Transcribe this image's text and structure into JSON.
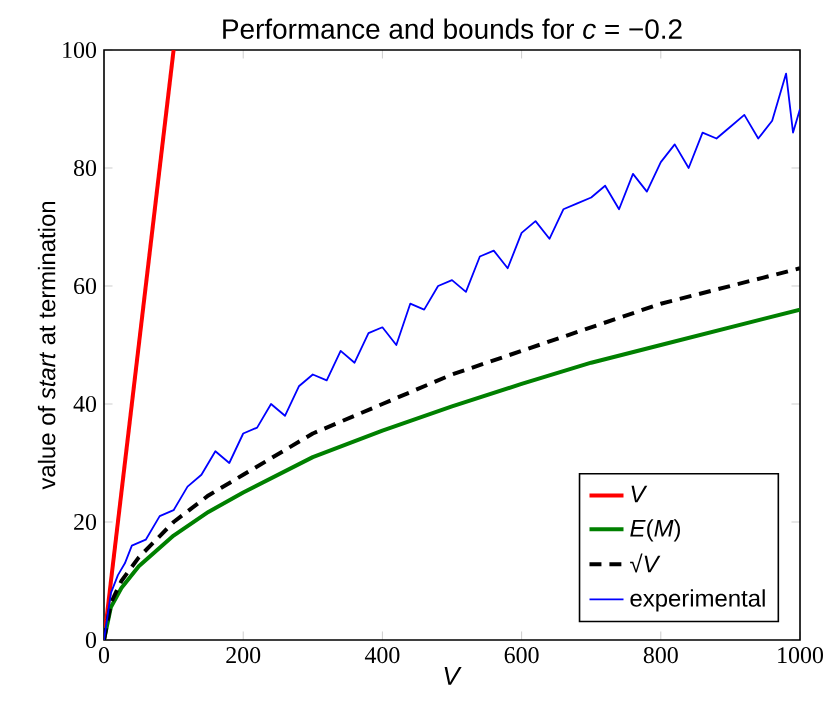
{
  "chart_data": {
    "type": "line",
    "title": "Performance and bounds for *c* = −0.2",
    "xlabel": "*V*",
    "ylabel": "value of *start* at termination",
    "xlim": [
      0,
      1000
    ],
    "ylim": [
      0,
      100
    ],
    "xticks": [
      0,
      200,
      400,
      600,
      800,
      1000
    ],
    "yticks": [
      0,
      20,
      40,
      60,
      80,
      100
    ],
    "grid": false,
    "legend": "bottom right",
    "marker": "none",
    "series": [
      {
        "name": "*V*",
        "color": "#ff0000",
        "x": [
          0,
          100
        ],
        "values": [
          0,
          100
        ]
      },
      {
        "name": "*E*(*M*)",
        "color": "#008000",
        "x": [
          0,
          10,
          25,
          50,
          100,
          150,
          200,
          300,
          400,
          500,
          600,
          700,
          800,
          900,
          1000
        ],
        "values": [
          0,
          5.6,
          8.8,
          12.5,
          17.7,
          21.7,
          25,
          31,
          35.5,
          39.6,
          43.4,
          47,
          50,
          53,
          56
        ]
      },
      {
        "name": "√*V*",
        "color": "#000000",
        "line_style": "dashed",
        "x": [
          0,
          10,
          25,
          50,
          100,
          150,
          200,
          300,
          400,
          500,
          600,
          700,
          800,
          900,
          1000
        ],
        "values": [
          0,
          6.3,
          10,
          14,
          20,
          24.5,
          28,
          35,
          40,
          45,
          49,
          53,
          57,
          60,
          63
        ]
      },
      {
        "name": "experimental",
        "color": "#0000ff",
        "x": [
          0,
          10,
          20,
          30,
          40,
          60,
          80,
          100,
          120,
          140,
          160,
          180,
          200,
          220,
          240,
          260,
          280,
          300,
          320,
          340,
          360,
          380,
          400,
          420,
          440,
          460,
          480,
          500,
          520,
          540,
          560,
          580,
          600,
          620,
          640,
          660,
          680,
          700,
          720,
          740,
          760,
          780,
          800,
          820,
          840,
          860,
          880,
          900,
          920,
          940,
          960,
          970,
          980,
          990,
          1000
        ],
        "values": [
          0,
          8,
          11,
          13,
          16,
          17,
          21,
          22,
          26,
          28,
          32,
          30,
          35,
          36,
          40,
          38,
          43,
          45,
          44,
          49,
          47,
          52,
          53,
          50,
          57,
          56,
          60,
          61,
          59,
          65,
          66,
          63,
          69,
          71,
          68,
          73,
          74,
          75,
          77,
          73,
          79,
          76,
          81,
          84,
          80,
          86,
          85,
          87,
          89,
          85,
          88,
          92,
          96,
          86,
          90
        ]
      }
    ]
  }
}
